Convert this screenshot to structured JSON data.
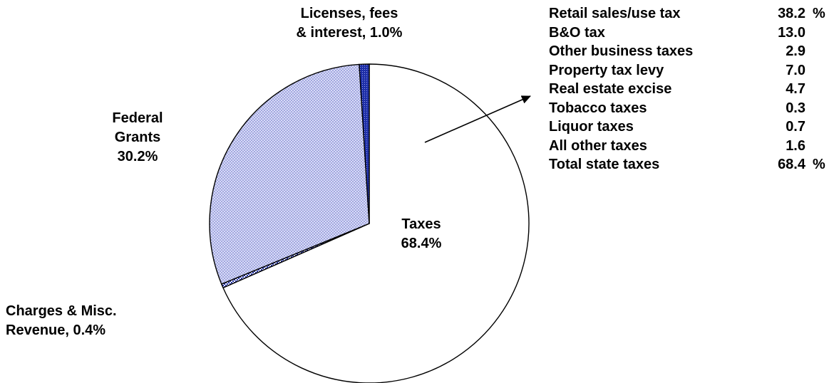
{
  "chart_data": {
    "type": "pie",
    "slices": [
      {
        "key": "taxes",
        "label_lines": [
          "Taxes",
          "68.4%"
        ],
        "value": 68.4,
        "fill": "white"
      },
      {
        "key": "charges",
        "label_lines": [
          "Charges & Misc.",
          "Revenue, 0.4%"
        ],
        "value": 0.4,
        "fill": "checker"
      },
      {
        "key": "federal",
        "label_lines": [
          "Federal",
          "Grants",
          "30.2%"
        ],
        "value": 30.2,
        "fill": "light-blue-dots"
      },
      {
        "key": "licenses",
        "label_lines": [
          "Licenses, fees",
          "& interest, 1.0%"
        ],
        "value": 1.0,
        "fill": "dark-blue-crosshatch"
      }
    ],
    "taxes_breakdown": [
      {
        "name": "Retail sales/use tax",
        "value": "38.2",
        "unit": "%"
      },
      {
        "name": "B&O tax",
        "value": "13.0",
        "unit": ""
      },
      {
        "name": "Other business taxes",
        "value": "2.9",
        "unit": ""
      },
      {
        "name": "Property tax levy",
        "value": "7.0",
        "unit": ""
      },
      {
        "name": "Real estate excise",
        "value": "4.7",
        "unit": ""
      },
      {
        "name": "Tobacco taxes",
        "value": "0.3",
        "unit": ""
      },
      {
        "name": "Liquor taxes",
        "value": "0.7",
        "unit": ""
      },
      {
        "name": "All other taxes",
        "value": "1.6",
        "unit": ""
      },
      {
        "name": "Total state taxes",
        "value": "68.4",
        "unit": "%"
      }
    ],
    "colors": {
      "taxes": "#ffffff",
      "federal_background": "#d8dcf6",
      "federal_dots": "#5a5fc2",
      "licenses": "#1e2fa8",
      "outline": "#000000"
    }
  }
}
